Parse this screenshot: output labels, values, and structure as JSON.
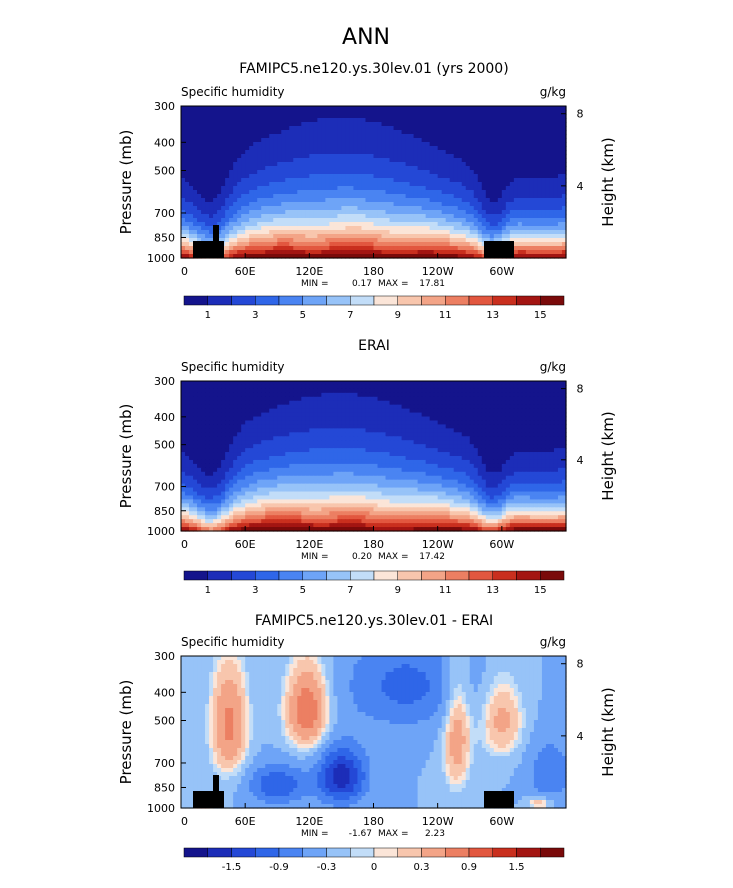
{
  "figure": {
    "title": "ANN"
  },
  "colors": {
    "model_obs_scale": [
      "#14148c",
      "#1c2db8",
      "#2448d6",
      "#2f66e8",
      "#4a84f2",
      "#6ea4f7",
      "#97c3f8",
      "#c2ddf8",
      "#fbe5d8",
      "#f8c6ad",
      "#f3a487",
      "#ec7f62",
      "#e2573f",
      "#c92f1e",
      "#a31512",
      "#7a0a0a"
    ],
    "diff_scale": [
      "#14148c",
      "#1c2db8",
      "#2448d6",
      "#2f66e8",
      "#4a84f2",
      "#6ea4f7",
      "#97c3f8",
      "#c2ddf8",
      "#fbe5d8",
      "#f8c6ad",
      "#f3a487",
      "#ec7f62",
      "#e2573f",
      "#c92f1e",
      "#a31512",
      "#7a0a0a"
    ],
    "terrain": "#000000"
  },
  "chart_data": [
    {
      "type": "heatmap",
      "title": "FAMIPC5.ne120.ys.30lev.01 (yrs 2000)",
      "variable_label": "Specific humidity",
      "units_label": "g/kg",
      "ylabel": "Pressure (mb)",
      "y2label": "Height (km)",
      "yticks": [
        "300",
        "400",
        "500",
        "700",
        "850",
        "1000"
      ],
      "y2ticks": [
        "8",
        "4"
      ],
      "xticks": [
        "0",
        "60E",
        "120E",
        "180",
        "120W",
        "60W"
      ],
      "xlim_deg": [
        0,
        360
      ],
      "ylim_mb": [
        1000,
        300
      ],
      "y_scale": "log",
      "stats": {
        "min_label": "MIN =",
        "min": "0.17",
        "max_label": "MAX =",
        "max": "17.81"
      },
      "colorbar_labels": [
        "1",
        "3",
        "5",
        "7",
        "9",
        "11",
        "13",
        "15"
      ],
      "colorbar_levels": [
        0,
        1,
        2,
        3,
        4,
        5,
        6,
        7,
        8,
        9,
        10,
        11,
        12,
        13,
        14,
        15,
        16
      ],
      "field": "model"
    },
    {
      "type": "heatmap",
      "title": "ERAI",
      "variable_label": "Specific humidity",
      "units_label": "g/kg",
      "ylabel": "Pressure (mb)",
      "y2label": "Height (km)",
      "yticks": [
        "300",
        "400",
        "500",
        "700",
        "850",
        "1000"
      ],
      "y2ticks": [
        "8",
        "4"
      ],
      "xticks": [
        "0",
        "60E",
        "120E",
        "180",
        "120W",
        "60W"
      ],
      "xlim_deg": [
        0,
        360
      ],
      "ylim_mb": [
        1000,
        300
      ],
      "y_scale": "log",
      "stats": {
        "min_label": "MIN =",
        "min": "0.20",
        "max_label": "MAX =",
        "max": "17.42"
      },
      "colorbar_labels": [
        "1",
        "3",
        "5",
        "7",
        "9",
        "11",
        "13",
        "15"
      ],
      "colorbar_levels": [
        0,
        1,
        2,
        3,
        4,
        5,
        6,
        7,
        8,
        9,
        10,
        11,
        12,
        13,
        14,
        15,
        16
      ],
      "field": "obs"
    },
    {
      "type": "heatmap",
      "title": "FAMIPC5.ne120.ys.30lev.01 - ERAI",
      "variable_label": "Specific humidity",
      "units_label": "g/kg",
      "ylabel": "Pressure (mb)",
      "y2label": "Height (km)",
      "yticks": [
        "300",
        "400",
        "500",
        "700",
        "850",
        "1000"
      ],
      "y2ticks": [
        "8",
        "4"
      ],
      "xticks": [
        "0",
        "60E",
        "120E",
        "180",
        "120W",
        "60W"
      ],
      "xlim_deg": [
        0,
        360
      ],
      "ylim_mb": [
        1000,
        300
      ],
      "y_scale": "log",
      "stats": {
        "min_label": "MIN =",
        "min": "-1.67",
        "max_label": "MAX =",
        "max": "2.23"
      },
      "colorbar_labels": [
        "-1.5",
        "-0.9",
        "-0.3",
        "0",
        "0.3",
        "0.9",
        "1.5"
      ],
      "colorbar_levels": [
        -2.1,
        -1.8,
        -1.5,
        -1.2,
        -0.9,
        -0.6,
        -0.3,
        -0.1,
        0,
        0.1,
        0.3,
        0.6,
        0.9,
        1.2,
        1.5,
        1.8,
        2.1
      ],
      "field": "diff"
    }
  ]
}
